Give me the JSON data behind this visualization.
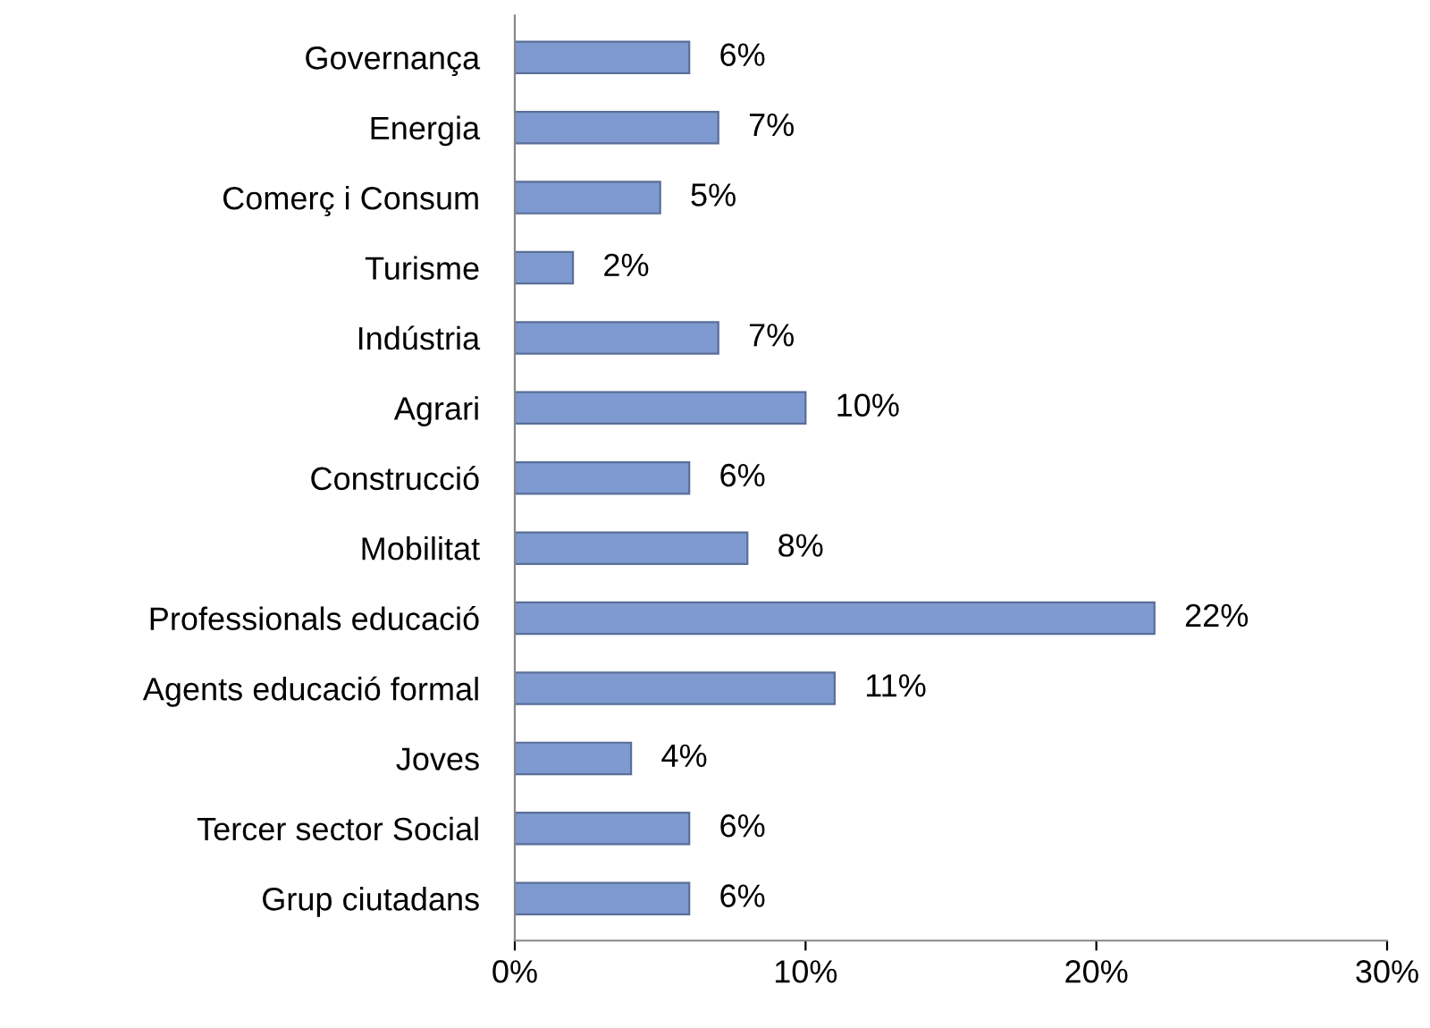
{
  "chart_data": {
    "type": "bar",
    "orientation": "horizontal",
    "categories": [
      "Governança",
      "Energia",
      "Comerç i Consum",
      "Turisme",
      "Indústria",
      "Agrari",
      "Construcció",
      "Mobilitat",
      "Professionals educació",
      "Agents educació formal",
      "Joves",
      "Tercer sector Social",
      "Grup ciutadans"
    ],
    "values": [
      6,
      7,
      5,
      2,
      7,
      10,
      6,
      8,
      22,
      11,
      4,
      6,
      6
    ],
    "value_labels": [
      "6%",
      "7%",
      "5%",
      "2%",
      "7%",
      "10%",
      "6%",
      "8%",
      "22%",
      "11%",
      "4%",
      "6%",
      "6%"
    ],
    "color": "#7f9ad0",
    "xlim": [
      0,
      30
    ],
    "xticks": [
      {
        "value": 0,
        "label": "0%"
      },
      {
        "value": 10,
        "label": "10%"
      },
      {
        "value": 20,
        "label": "20%"
      },
      {
        "value": 30,
        "label": "30%"
      }
    ],
    "grid": false,
    "legend": false
  }
}
